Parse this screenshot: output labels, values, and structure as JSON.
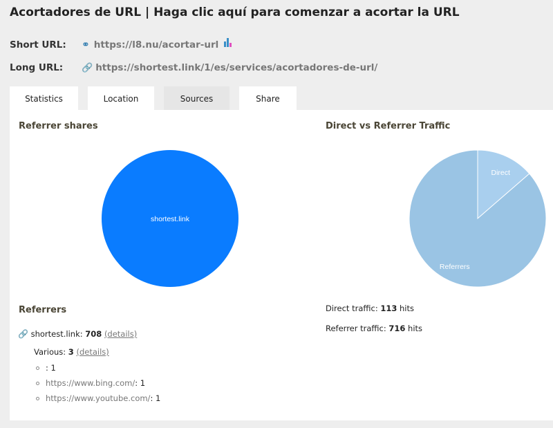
{
  "title": "Acortadores de URL | Haga clic aquí para comenzar a acortar la URL",
  "short_url": {
    "label": "Short URL:",
    "value": "https://l8.nu/acortar-url"
  },
  "long_url": {
    "label": "Long URL:",
    "value": "https://shortest.link/1/es/services/acortadores-de-url/"
  },
  "tabs": [
    {
      "label": "Statistics"
    },
    {
      "label": "Location"
    },
    {
      "label": "Sources"
    },
    {
      "label": "Share"
    }
  ],
  "referrer_shares": {
    "title": "Referrer shares"
  },
  "direct_vs": {
    "title": "Direct vs Referrer Traffic",
    "direct_prefix": "Direct traffic: ",
    "direct_hits": "113",
    "referrer_prefix": "Referrer traffic: ",
    "referrer_hits": "716",
    "hits": " hits"
  },
  "referrers": {
    "title": "Referrers",
    "main_name": "shortest.link: ",
    "main_count": "708",
    "details": "(details)",
    "various_label": "Various: ",
    "various_count": "3",
    "items": [
      {
        "url": "",
        "count": ": 1"
      },
      {
        "url": "https://www.bing.com/",
        "count": ": 1"
      },
      {
        "url": "https://www.youtube.com/",
        "count": ": 1"
      }
    ]
  },
  "chart_data": [
    {
      "type": "pie",
      "title": "Referrer shares",
      "labels": [
        "shortest.link"
      ],
      "values": [
        708
      ],
      "colors": [
        "#0a7cff"
      ]
    },
    {
      "type": "pie",
      "title": "Direct vs Referrer Traffic",
      "labels": [
        "Direct",
        "Referrers"
      ],
      "values": [
        113,
        716
      ],
      "colors": [
        "#a9cfee",
        "#9ac4e4"
      ]
    }
  ]
}
